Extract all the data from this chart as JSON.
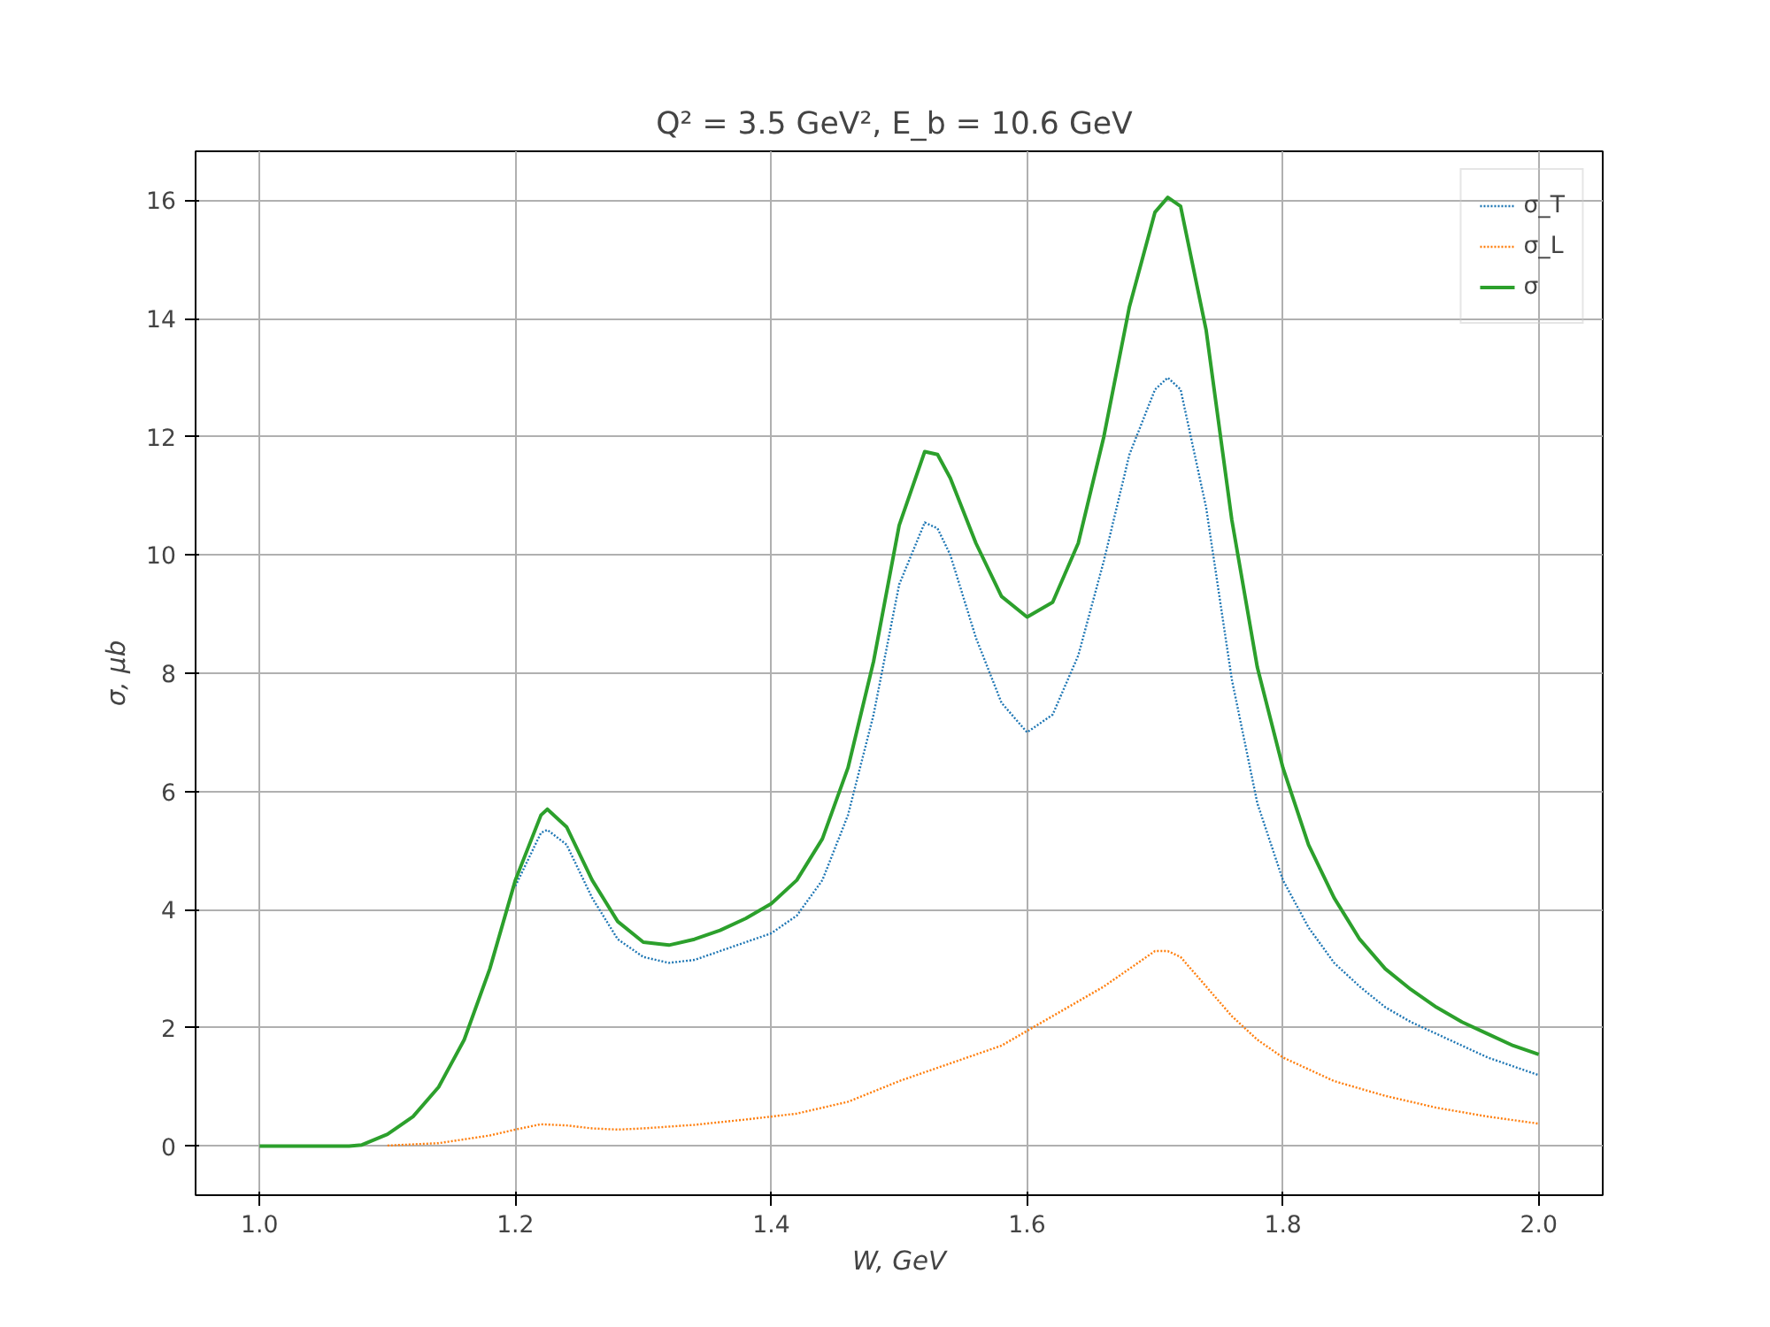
{
  "chart_data": {
    "type": "line",
    "title": "Q² = 3.5 GeV²,  E_b = 10.6 GeV",
    "xlabel": "W, GeV",
    "ylabel": "σ, μb",
    "xlim": [
      0.95,
      2.05
    ],
    "ylim": [
      -0.83,
      16.83
    ],
    "xticks": [
      {
        "value": 1.0,
        "label": "1.0"
      },
      1.2,
      1.4,
      1.6,
      1.8,
      {
        "value": 2.0,
        "label": "2.0"
      }
    ],
    "yticks": [
      0,
      2,
      4,
      6,
      8,
      10,
      12,
      14,
      16
    ],
    "grid": true,
    "legend": "top right",
    "series": [
      {
        "name": "σ_T",
        "color": "#1f77b4",
        "line_style": "dotted",
        "x": [
          1.2,
          1.22,
          1.225,
          1.24,
          1.26,
          1.28,
          1.3,
          1.32,
          1.34,
          1.36,
          1.38,
          1.4,
          1.42,
          1.44,
          1.46,
          1.48,
          1.5,
          1.52,
          1.53,
          1.54,
          1.56,
          1.58,
          1.6,
          1.62,
          1.64,
          1.66,
          1.68,
          1.7,
          1.71,
          1.72,
          1.74,
          1.76,
          1.78,
          1.8,
          1.82,
          1.84,
          1.86,
          1.88,
          1.9,
          1.92,
          1.94,
          1.96,
          1.98,
          2.0
        ],
        "values": [
          4.4,
          5.3,
          5.35,
          5.1,
          4.2,
          3.5,
          3.2,
          3.1,
          3.15,
          3.3,
          3.45,
          3.6,
          3.9,
          4.5,
          5.6,
          7.3,
          9.5,
          10.55,
          10.45,
          10.0,
          8.6,
          7.5,
          7.0,
          7.3,
          8.3,
          9.9,
          11.7,
          12.8,
          13.0,
          12.8,
          10.8,
          7.9,
          5.8,
          4.5,
          3.7,
          3.1,
          2.7,
          2.35,
          2.1,
          1.9,
          1.7,
          1.5,
          1.35,
          1.2
        ]
      },
      {
        "name": "σ_L",
        "color": "#ff7f0e",
        "line_style": "dotted",
        "x": [
          1.1,
          1.14,
          1.18,
          1.2,
          1.22,
          1.24,
          1.26,
          1.28,
          1.3,
          1.34,
          1.38,
          1.42,
          1.46,
          1.5,
          1.54,
          1.58,
          1.62,
          1.66,
          1.7,
          1.71,
          1.72,
          1.74,
          1.76,
          1.78,
          1.8,
          1.84,
          1.88,
          1.92,
          1.96,
          2.0
        ],
        "values": [
          0.01,
          0.05,
          0.18,
          0.28,
          0.37,
          0.35,
          0.3,
          0.28,
          0.3,
          0.36,
          0.45,
          0.55,
          0.75,
          1.1,
          1.4,
          1.7,
          2.2,
          2.7,
          3.3,
          3.3,
          3.2,
          2.7,
          2.2,
          1.8,
          1.5,
          1.1,
          0.85,
          0.65,
          0.5,
          0.38
        ]
      },
      {
        "name": "σ",
        "color": "#2ca02c",
        "line_style": "solid",
        "x": [
          1.0,
          1.07,
          1.08,
          1.1,
          1.12,
          1.14,
          1.16,
          1.18,
          1.2,
          1.22,
          1.225,
          1.24,
          1.26,
          1.28,
          1.3,
          1.32,
          1.34,
          1.36,
          1.38,
          1.4,
          1.42,
          1.44,
          1.46,
          1.48,
          1.5,
          1.52,
          1.53,
          1.54,
          1.56,
          1.58,
          1.6,
          1.62,
          1.64,
          1.66,
          1.68,
          1.7,
          1.71,
          1.72,
          1.74,
          1.76,
          1.78,
          1.8,
          1.82,
          1.84,
          1.86,
          1.88,
          1.9,
          1.92,
          1.94,
          1.96,
          1.98,
          2.0
        ],
        "values": [
          0,
          0,
          0.02,
          0.2,
          0.5,
          1.0,
          1.8,
          3.0,
          4.5,
          5.6,
          5.7,
          5.4,
          4.5,
          3.8,
          3.45,
          3.4,
          3.5,
          3.65,
          3.85,
          4.1,
          4.5,
          5.2,
          6.4,
          8.2,
          10.5,
          11.75,
          11.7,
          11.3,
          10.2,
          9.3,
          8.95,
          9.2,
          10.2,
          12.0,
          14.2,
          15.8,
          16.05,
          15.9,
          13.8,
          10.6,
          8.1,
          6.4,
          5.1,
          4.2,
          3.5,
          3.0,
          2.65,
          2.35,
          2.1,
          1.9,
          1.7,
          1.55
        ]
      }
    ]
  }
}
